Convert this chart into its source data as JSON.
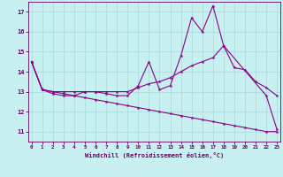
{
  "xlabel": "Windchill (Refroidissement éolien,°C)",
  "bg_color": "#c8f0f0",
  "grid_color": "#a8dada",
  "line_color": "#880088",
  "x_ticks": [
    0,
    1,
    2,
    3,
    4,
    5,
    6,
    7,
    8,
    9,
    10,
    11,
    12,
    13,
    14,
    15,
    16,
    17,
    18,
    19,
    20,
    21,
    22,
    23
  ],
  "y_ticks": [
    11,
    12,
    13,
    14,
    15,
    16,
    17
  ],
  "ylim": [
    10.5,
    17.5
  ],
  "xlim": [
    -0.3,
    23.3
  ],
  "line1_x": [
    0,
    1,
    2,
    3,
    4,
    5,
    6,
    7,
    8,
    9,
    10,
    11,
    12,
    13,
    14,
    15,
    16,
    17,
    18,
    22,
    23
  ],
  "line1_y": [
    14.5,
    13.1,
    12.9,
    12.8,
    12.8,
    13.0,
    13.0,
    12.9,
    12.8,
    12.8,
    13.3,
    14.5,
    13.1,
    13.3,
    14.8,
    16.7,
    16.0,
    17.3,
    15.3,
    12.8,
    11.1
  ],
  "line2_x": [
    0,
    1,
    2,
    3,
    4,
    5,
    6,
    7,
    8,
    9,
    10,
    11,
    12,
    13,
    14,
    15,
    16,
    17,
    18,
    19,
    20,
    21,
    22,
    23
  ],
  "line2_y": [
    14.5,
    13.1,
    13.0,
    13.0,
    13.0,
    13.0,
    13.0,
    13.0,
    13.0,
    13.0,
    13.2,
    13.4,
    13.5,
    13.7,
    14.0,
    14.3,
    14.5,
    14.7,
    15.3,
    14.2,
    14.1,
    13.5,
    13.2,
    12.8
  ],
  "line3_x": [
    0,
    1,
    2,
    3,
    4,
    5,
    6,
    7,
    8,
    9,
    10,
    11,
    12,
    13,
    14,
    15,
    16,
    17,
    18,
    19,
    20,
    21,
    22,
    23
  ],
  "line3_y": [
    14.5,
    13.1,
    13.0,
    12.9,
    12.8,
    12.7,
    12.6,
    12.5,
    12.4,
    12.3,
    12.2,
    12.1,
    12.0,
    11.9,
    11.8,
    11.7,
    11.6,
    11.5,
    11.4,
    11.3,
    11.2,
    11.1,
    11.0,
    11.0
  ]
}
